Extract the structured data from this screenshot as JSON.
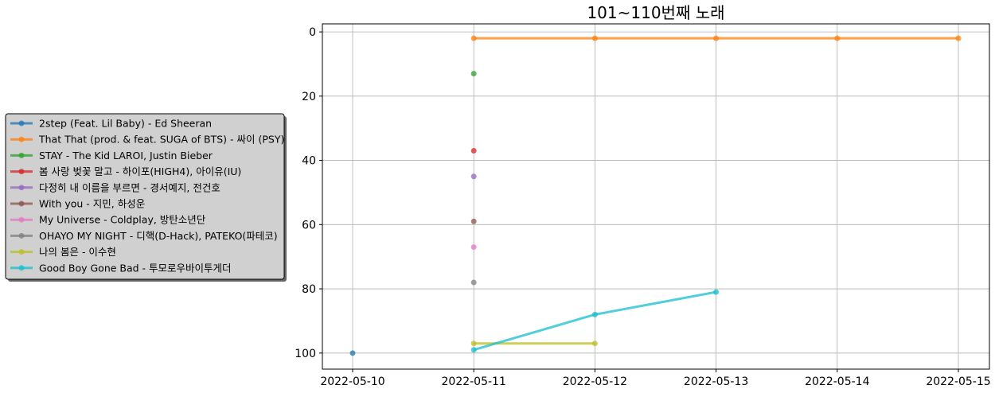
{
  "chart_data": {
    "type": "line",
    "title": "101~110번째 노래",
    "xlabel": "",
    "ylabel": "",
    "x": [
      "2022-05-10",
      "2022-05-11",
      "2022-05-12",
      "2022-05-13",
      "2022-05-14",
      "2022-05-15"
    ],
    "x_tick_labels": [
      "2022-05-10",
      "2022-05-11",
      "2022-05-12",
      "2022-05-13",
      "2022-05-14",
      "2022-05-15"
    ],
    "xlim": [
      "2022-05-10",
      "2022-05-15"
    ],
    "y_tick_labels": [
      "0",
      "20",
      "40",
      "60",
      "80",
      "100"
    ],
    "yticks": [
      0,
      20,
      40,
      60,
      80,
      100
    ],
    "ylim": [
      105,
      -2.5
    ],
    "y_inverted": true,
    "grid": true,
    "legend_position": "left, outside plot",
    "series": [
      {
        "name": "2step (Feat. Lil Baby) - Ed Sheeran",
        "color": "#1f77b4",
        "points": [
          {
            "x": "2022-05-10",
            "y": 100
          }
        ]
      },
      {
        "name": "That That (prod. & feat. SUGA of BTS) - 싸이 (PSY)",
        "color": "#ff7f0e",
        "points": [
          {
            "x": "2022-05-11",
            "y": 2
          },
          {
            "x": "2022-05-12",
            "y": 2
          },
          {
            "x": "2022-05-13",
            "y": 2
          },
          {
            "x": "2022-05-14",
            "y": 2
          },
          {
            "x": "2022-05-15",
            "y": 2
          }
        ]
      },
      {
        "name": "STAY - The Kid LAROI, Justin Bieber",
        "color": "#2ca02c",
        "points": [
          {
            "x": "2022-05-11",
            "y": 13
          }
        ]
      },
      {
        "name": "봄 사랑 벚꽃 말고 - 하이포(HIGH4), 아이유(IU)",
        "color": "#d62728",
        "points": [
          {
            "x": "2022-05-11",
            "y": 37
          }
        ]
      },
      {
        "name": "다정히 내 이름을 부르면 - 경서예지, 전건호",
        "color": "#9467bd",
        "points": [
          {
            "x": "2022-05-11",
            "y": 45
          }
        ]
      },
      {
        "name": "With you - 지민, 하성운",
        "color": "#8c564b",
        "points": [
          {
            "x": "2022-05-11",
            "y": 59
          }
        ]
      },
      {
        "name": "My Universe - Coldplay, 방탄소년단",
        "color": "#e377c2",
        "points": [
          {
            "x": "2022-05-11",
            "y": 67
          }
        ]
      },
      {
        "name": "OHAYO MY NIGHT - 디핵(D-Hack), PATEKO(파테코)",
        "color": "#7f7f7f",
        "points": [
          {
            "x": "2022-05-11",
            "y": 78
          }
        ]
      },
      {
        "name": "나의 봄은 - 이수현",
        "color": "#bcbd22",
        "points": [
          {
            "x": "2022-05-11",
            "y": 97
          },
          {
            "x": "2022-05-12",
            "y": 97
          }
        ]
      },
      {
        "name": "Good Boy Gone Bad - 투모로우바이투게더",
        "color": "#17becf",
        "points": [
          {
            "x": "2022-05-11",
            "y": 99
          },
          {
            "x": "2022-05-12",
            "y": 88
          },
          {
            "x": "2022-05-13",
            "y": 81
          }
        ]
      }
    ]
  }
}
